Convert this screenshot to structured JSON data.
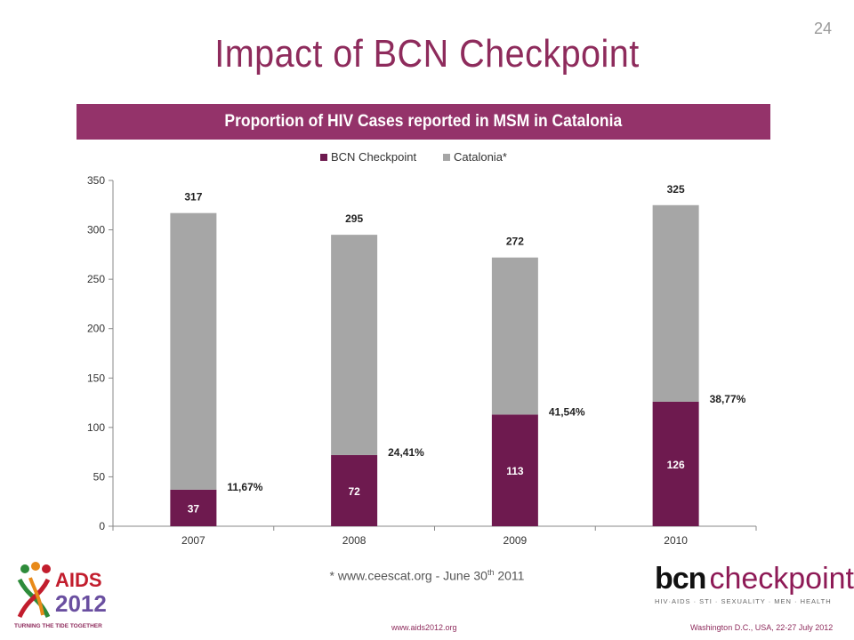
{
  "slide": {
    "page_number": "24",
    "title": "Impact of BCN Checkpoint",
    "footnote_main": "* www.ceescat.org -  June 30",
    "footnote_sup": "th",
    "footnote_year": " 2011",
    "footer_left": "www.aids2012.org",
    "footer_right": "Washington D.C., USA, 22-27 July 2012"
  },
  "logos": {
    "aids_main": "AIDS",
    "aids_year": "2012",
    "aids_tagline": "TURNING THE TIDE TOGETHER",
    "bcn_strong": "bcn",
    "bcn_light": "checkpoint",
    "bcn_tagline": "HIV·AIDS · STI · SEXUALITY · MEN · HEALTH"
  },
  "colors": {
    "accent": "#94336a",
    "bcn_series": "#6e1a4f",
    "catalonia_series": "#a6a6a6",
    "title": "#8e2b5c"
  },
  "chart_data": {
    "type": "bar",
    "stacked": true,
    "title": "Proportion of HIV Cases reported in MSM in Catalonia",
    "categories": [
      "2007",
      "2008",
      "2009",
      "2010"
    ],
    "series": [
      {
        "name": "BCN Checkpoint",
        "values": [
          37,
          72,
          113,
          126
        ],
        "labels": [
          "37",
          "72",
          "113",
          "126"
        ]
      },
      {
        "name": "Catalonia*",
        "values": [
          280,
          223,
          159,
          199
        ]
      }
    ],
    "totals": [
      317,
      295,
      272,
      325
    ],
    "total_labels": [
      "317",
      "295",
      "272",
      "325"
    ],
    "percent_labels": [
      "11,67%",
      "24,41%",
      "41,54%",
      "38,77%"
    ],
    "ylim": [
      0,
      350
    ],
    "yticks": [
      0,
      50,
      100,
      150,
      200,
      250,
      300,
      350
    ],
    "ytick_labels": [
      "0",
      "50",
      "100",
      "150",
      "200",
      "250",
      "300",
      "350"
    ],
    "grid": false,
    "legend_position": "top"
  }
}
